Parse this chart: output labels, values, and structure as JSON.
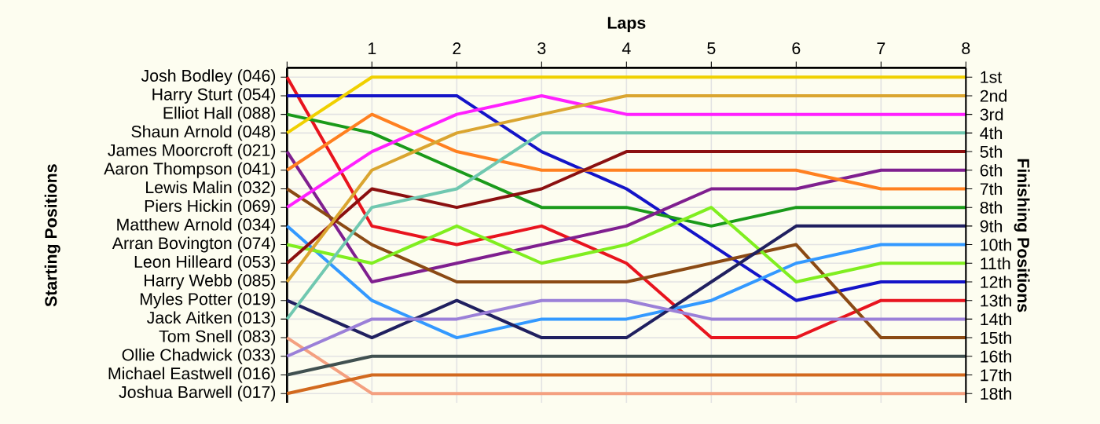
{
  "chart_data": {
    "type": "line",
    "xlabel": "Laps",
    "annotations": [
      "Starting Positions"
    ],
    "y2label": "Finishing Positions",
    "grid": true,
    "x": [
      0,
      1,
      2,
      3,
      4,
      5,
      6,
      7,
      8
    ],
    "xlim": [
      0,
      8
    ],
    "xticks": [
      {
        "value": 0,
        "label": null
      },
      1,
      2,
      3,
      4,
      5,
      6,
      7,
      8
    ],
    "ylim": [
      18.5,
      0.5
    ],
    "yticks": [
      {
        "value": 1,
        "label": "1st"
      },
      {
        "value": 2,
        "label": "2nd"
      },
      {
        "value": 3,
        "label": "3rd"
      },
      {
        "value": 4,
        "label": "4th"
      },
      {
        "value": 5,
        "label": "5th"
      },
      {
        "value": 6,
        "label": "6th"
      },
      {
        "value": 7,
        "label": "7th"
      },
      {
        "value": 8,
        "label": "8th"
      },
      {
        "value": 9,
        "label": "9th"
      },
      {
        "value": 10,
        "label": "10th"
      },
      {
        "value": 11,
        "label": "11th"
      },
      {
        "value": 12,
        "label": "12th"
      },
      {
        "value": 13,
        "label": "13th"
      },
      {
        "value": 14,
        "label": "14th"
      },
      {
        "value": 15,
        "label": "15th"
      },
      {
        "value": 16,
        "label": "16th"
      },
      {
        "value": 17,
        "label": "17th"
      },
      {
        "value": 18,
        "label": "18th"
      }
    ],
    "series": [
      {
        "name": "Josh Bodley (046)",
        "color": "#e8141e",
        "values": [
          1,
          9,
          10,
          9,
          11,
          15,
          15,
          13,
          13
        ]
      },
      {
        "name": "Harry Sturt (054)",
        "color": "#1414c8",
        "values": [
          2,
          2,
          2,
          5,
          7,
          10,
          13,
          12,
          12
        ]
      },
      {
        "name": "Elliot Hall (088)",
        "color": "#1a9a1a",
        "values": [
          3,
          4,
          6,
          8,
          8,
          9,
          8,
          8,
          8
        ]
      },
      {
        "name": "Shaun Arnold (048)",
        "color": "#f0d000",
        "values": [
          4,
          1,
          1,
          1,
          1,
          1,
          1,
          1,
          1
        ]
      },
      {
        "name": "James Moorcroft (021)",
        "color": "#7f1f8f",
        "values": [
          5,
          12,
          11,
          10,
          9,
          7,
          7,
          6,
          6
        ]
      },
      {
        "name": "Aaron Thompson (041)",
        "color": "#ff8020",
        "values": [
          6,
          3,
          5,
          6,
          6,
          6,
          6,
          7,
          7
        ]
      },
      {
        "name": "Lewis Malin (032)",
        "color": "#8b4a14",
        "values": [
          7,
          10,
          12,
          12,
          12,
          11,
          10,
          15,
          15
        ]
      },
      {
        "name": "Piers Hickin (069)",
        "color": "#ff20ff",
        "values": [
          8,
          5,
          3,
          2,
          3,
          3,
          3,
          3,
          3
        ]
      },
      {
        "name": "Matthew Arnold (034)",
        "color": "#3399ff",
        "values": [
          9,
          13,
          15,
          14,
          14,
          13,
          11,
          10,
          10
        ]
      },
      {
        "name": "Arran Bovington (074)",
        "color": "#80ee20",
        "values": [
          10,
          11,
          9,
          11,
          10,
          8,
          12,
          11,
          11
        ]
      },
      {
        "name": "Leon Hilleard (053)",
        "color": "#8b1010",
        "values": [
          11,
          7,
          8,
          7,
          5,
          5,
          5,
          5,
          5
        ]
      },
      {
        "name": "Harry Webb (085)",
        "color": "#daa530",
        "values": [
          12,
          6,
          4,
          3,
          2,
          2,
          2,
          2,
          2
        ]
      },
      {
        "name": "Myles Potter (019)",
        "color": "#202060",
        "values": [
          13,
          15,
          13,
          15,
          15,
          12,
          9,
          9,
          9
        ]
      },
      {
        "name": "Jack Aitken (013)",
        "color": "#70c8b0",
        "values": [
          14,
          8,
          7,
          4,
          4,
          4,
          4,
          4,
          4
        ]
      },
      {
        "name": "Tom Snell (083)",
        "color": "#f4a080",
        "values": [
          15,
          18,
          18,
          18,
          18,
          18,
          18,
          18,
          18
        ]
      },
      {
        "name": "Ollie Chadwick (033)",
        "color": "#9b80d8",
        "values": [
          16,
          14,
          14,
          13,
          13,
          14,
          14,
          14,
          14
        ]
      },
      {
        "name": "Michael Eastwell (016)",
        "color": "#405050",
        "values": [
          17,
          16,
          16,
          16,
          16,
          16,
          16,
          16,
          16
        ]
      },
      {
        "name": "Joshua Barwell (017)",
        "color": "#d2691e",
        "values": [
          18,
          17,
          17,
          17,
          17,
          17,
          17,
          17,
          17
        ]
      }
    ]
  }
}
